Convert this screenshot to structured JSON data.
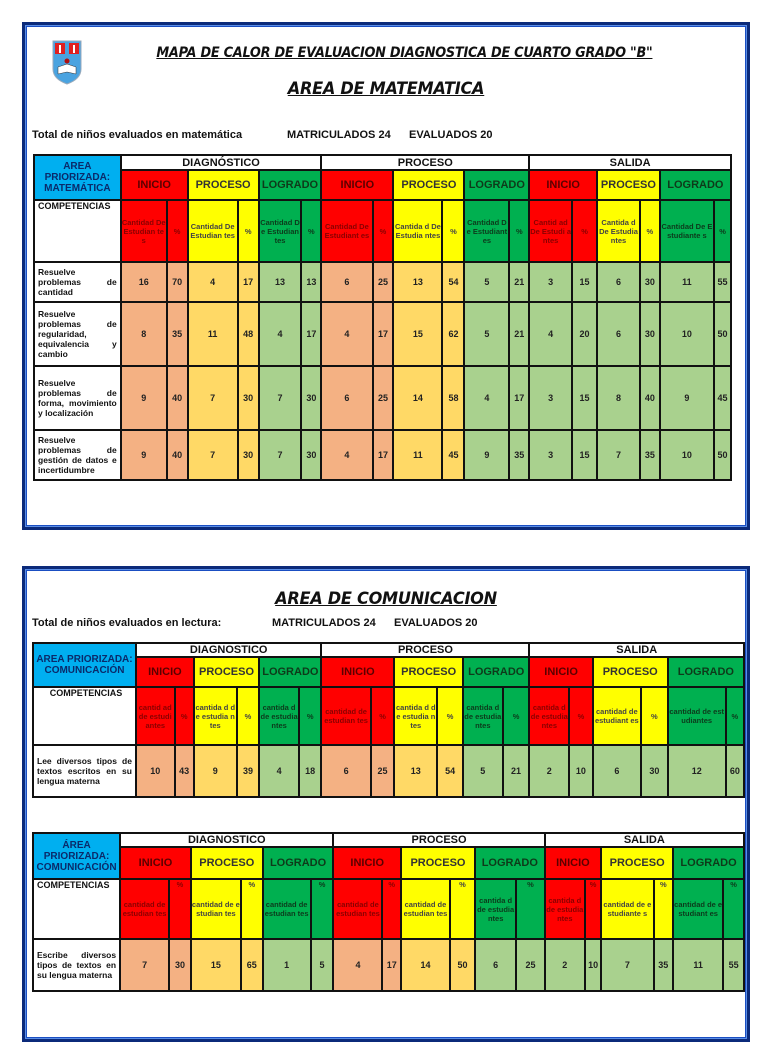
{
  "document": {
    "main_title": "MAPA DE CALOR DE EVALUACION DIAGNOSTICA DE CUARTO GRADO \"B\"",
    "logo_icon": "school-crest-icon"
  },
  "colors": {
    "frame_border": "#0b2a7a",
    "area_header": "#00aff0",
    "inicio": "#ff0000",
    "proceso": "#ffff00",
    "logrado": "#00b050",
    "cell_inicio": "#f4b183",
    "cell_proceso": "#ffd966",
    "cell_logrado": "#a9d18e"
  },
  "matematica": {
    "title": "AREA DE MATEMATICA",
    "summary_label": "Total de niños evaluados en matemática",
    "matriculados": "MATRICULADOS  24",
    "evaluados": "EVALUADOS 20",
    "table": {
      "area_label": "AREA PRIORIZADA: MATEMÁTICA",
      "phases": [
        "DIAGNÓSTICO",
        "PROCESO",
        "SALIDA"
      ],
      "levels": [
        "INICIO",
        "PROCESO",
        "LOGRADO"
      ],
      "competencias_label": "COMPETENCIAS",
      "sub_headers": [
        "Cantidad De Estudian tes",
        "%",
        "Cantidad De Estudian tes",
        "%",
        "Cantidad De Estudian tes",
        "%",
        "Cantidad De Estudiant es",
        "%",
        "Cantida d De Estudia ntes",
        "%",
        "Cantidad De Estudiant es",
        "%",
        "Cantid ad De Estudi antes",
        "%",
        "Cantida d De Estudia ntes",
        "%",
        "Cantidad De Estudiante s",
        "%"
      ],
      "rows": [
        {
          "competencia": "Resuelve problemas de cantidad",
          "values": [
            "16",
            "70",
            "4",
            "17",
            "13",
            "13",
            "6",
            "25",
            "13",
            "54",
            "5",
            "21",
            "3",
            "15",
            "6",
            "30",
            "11",
            "55"
          ]
        },
        {
          "competencia": "Resuelve problemas de regularidad, equivalencia y cambio",
          "values": [
            "8",
            "35",
            "11",
            "48",
            "4",
            "17",
            "4",
            "17",
            "15",
            "62",
            "5",
            "21",
            "4",
            "20",
            "6",
            "30",
            "10",
            "50"
          ]
        },
        {
          "competencia": "Resuelve problemas de forma, movimiento y localización",
          "values": [
            "9",
            "40",
            "7",
            "30",
            "7",
            "30",
            "6",
            "25",
            "14",
            "58",
            "4",
            "17",
            "3",
            "15",
            "8",
            "40",
            "9",
            "45"
          ]
        },
        {
          "competencia": "Resuelve problemas de gestión de datos e incertidumbre",
          "values": [
            "9",
            "40",
            "7",
            "30",
            "7",
            "30",
            "4",
            "17",
            "11",
            "45",
            "9",
            "35",
            "3",
            "15",
            "7",
            "35",
            "10",
            "50"
          ]
        }
      ]
    }
  },
  "comunicacion": {
    "title": "AREA DE COMUNICACION",
    "summary_label": "Total de niños evaluados en lectura:",
    "matriculados": "MATRICULADOS  24",
    "evaluados": "EVALUADOS 20",
    "lectura_table": {
      "area_label": "AREA PRIORIZADA: COMUNICACIÓN",
      "phases": [
        "DIAGNOSTICO",
        "PROCESO",
        "SALIDA"
      ],
      "levels": [
        "INICIO",
        "PROCESO",
        "LOGRADO"
      ],
      "competencias_label": "COMPETENCIAS",
      "sub_headers": [
        "cantid ad de estudi antes",
        "%",
        "cantida d de estudia ntes",
        "%",
        "cantida d de estudia ntes",
        "%",
        "cantidad de estudian tes",
        "%",
        "cantida d de estudia ntes",
        "%",
        "cantida d de estudia ntes",
        "%",
        "cantida d de estudia ntes",
        "%",
        "cantidad de estudiant es",
        "%",
        "cantidad de estudiantes",
        "%"
      ],
      "rows": [
        {
          "competencia": "Lee diversos tipos de textos escritos en su lengua materna",
          "values": [
            "10",
            "43",
            "9",
            "39",
            "4",
            "18",
            "6",
            "25",
            "13",
            "54",
            "5",
            "21",
            "2",
            "10",
            "6",
            "30",
            "12",
            "60"
          ]
        }
      ]
    },
    "escritura_table": {
      "area_label": "ÁREA PRIORIZADA: COMUNICACIÓN",
      "phases": [
        "DIAGNOSTICO",
        "PROCESO",
        "SALIDA"
      ],
      "levels": [
        "INICIO",
        "PROCESO",
        "LOGRADO"
      ],
      "competencias_label": "COMPETENCIAS",
      "sub_headers": [
        "cantidad de estudian tes",
        "%",
        "cantidad de estudian tes",
        "%",
        "cantidad de estudian tes",
        "%",
        "cantidad de estudian tes",
        "%",
        "cantidad de estudian tes",
        "%",
        "cantida d de estudia ntes",
        "%",
        "cantida d de estudia ntes",
        "%",
        "cantidad de estudiante s",
        "%",
        "cantidad de estudiant es",
        "%"
      ],
      "rows": [
        {
          "competencia": "Escribe diversos tipos de textos en su lengua materna",
          "values": [
            "7",
            "30",
            "15",
            "65",
            "1",
            "5",
            "4",
            "17",
            "14",
            "50",
            "6",
            "25",
            "2",
            "10",
            "7",
            "35",
            "11",
            "55"
          ]
        }
      ]
    }
  }
}
